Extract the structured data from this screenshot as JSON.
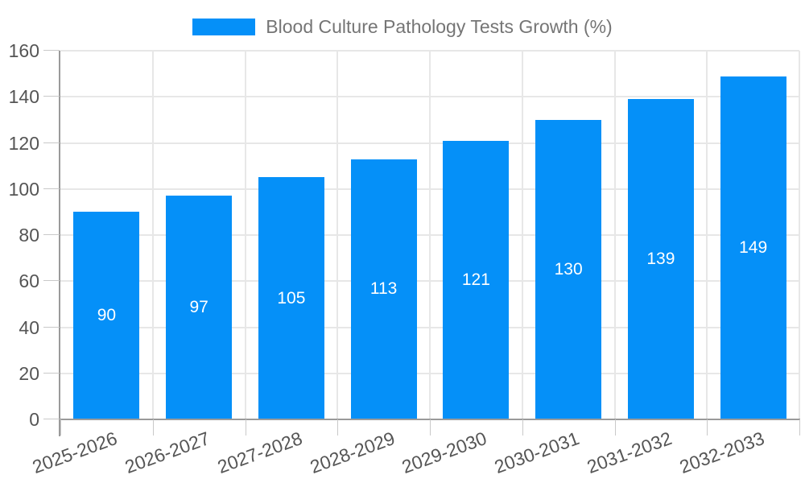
{
  "legend": {
    "label": "Blood Culture Pathology Tests Growth (%)"
  },
  "chart_data": {
    "type": "bar",
    "title": "",
    "xlabel": "",
    "ylabel": "",
    "series_name": "Blood Culture Pathology Tests Growth (%)",
    "categories": [
      "2025-2026",
      "2026-2027",
      "2027-2028",
      "2028-2029",
      "2029-2030",
      "2030-2031",
      "2031-2032",
      "2032-2033"
    ],
    "values": [
      90,
      97,
      105,
      113,
      121,
      130,
      139,
      149
    ],
    "bar_labels": [
      "90",
      "97",
      "105",
      "113",
      "121",
      "130",
      "139",
      "149"
    ],
    "ylim": [
      0,
      160
    ],
    "yticks": [
      0,
      20,
      40,
      60,
      80,
      100,
      120,
      140,
      160
    ],
    "grid": true,
    "legend_position": "top-center",
    "x_label_rotation_deg": -20,
    "colors": {
      "bar": "#0590f8",
      "bar_value_text": "#ffffff",
      "legend_text": "#757575",
      "axis_text": "#555555",
      "gridline": "#e7e7e7",
      "axis_line": "#9a9a9a",
      "tick": "#c9c9c9",
      "background": "#ffffff"
    }
  }
}
